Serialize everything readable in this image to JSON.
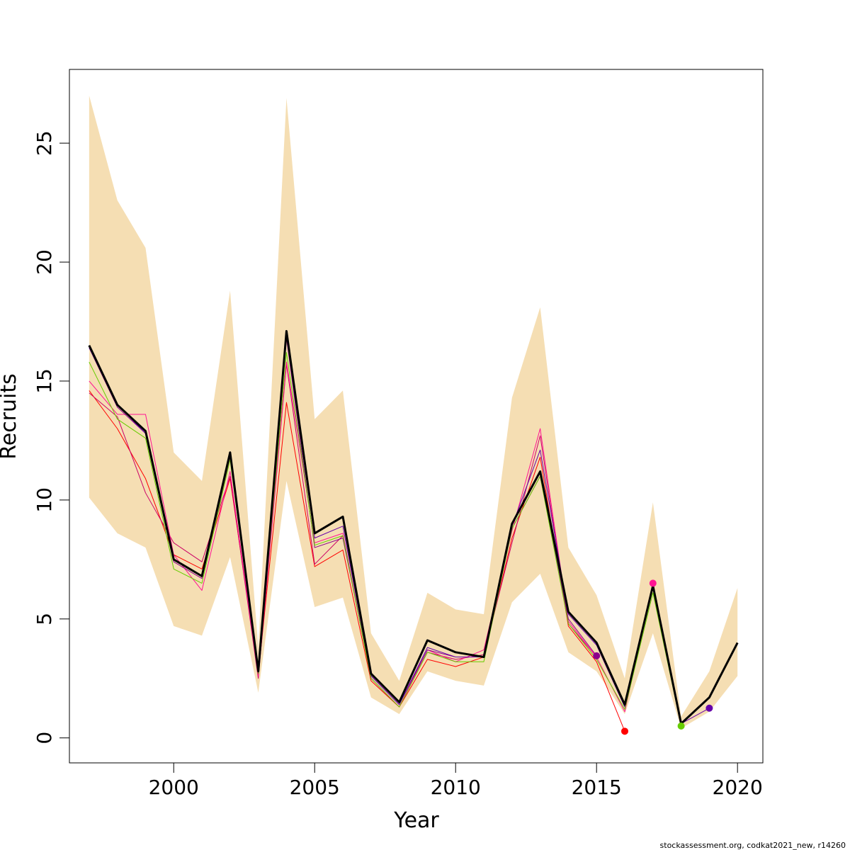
{
  "footer": {
    "credit": "stockassessment.org, codkat2021_new, r14260"
  },
  "chart_data": {
    "type": "line",
    "title": "",
    "xlabel": "Year",
    "ylabel": "Recruits",
    "xlim": [
      1996.3,
      2020.9
    ],
    "ylim": [
      -1.05,
      28.1
    ],
    "x_ticks": [
      2000,
      2005,
      2010,
      2015,
      2020
    ],
    "y_ticks": [
      0,
      5,
      10,
      15,
      20,
      25
    ],
    "grid": false,
    "legend": "none",
    "colors": {
      "band": "#f5deb3",
      "estimate": "#000000",
      "retro_red": "#ff0000",
      "retro_magenta": "#cc0066",
      "retro_pink": "#ff1493",
      "retro_purple": "#8b008b",
      "retro_indigo": "#6600aa",
      "retro_green": "#66cc00"
    },
    "band": {
      "x": [
        1997,
        1998,
        1999,
        2000,
        2001,
        2002,
        2003,
        2004,
        2005,
        2006,
        2007,
        2008,
        2009,
        2010,
        2011,
        2012,
        2013,
        2014,
        2015,
        2016,
        2017,
        2018,
        2019,
        2020
      ],
      "upper": [
        27.0,
        22.6,
        20.6,
        12.0,
        10.8,
        18.8,
        3.8,
        26.9,
        13.4,
        14.6,
        4.4,
        2.4,
        6.1,
        5.4,
        5.2,
        14.3,
        18.1,
        8.0,
        6.0,
        2.5,
        9.9,
        0.9,
        2.8,
        6.3
      ],
      "lower": [
        10.1,
        8.6,
        8.0,
        4.7,
        4.3,
        7.6,
        1.9,
        10.8,
        5.5,
        5.9,
        1.7,
        1.0,
        2.8,
        2.4,
        2.2,
        5.7,
        6.9,
        3.6,
        2.8,
        1.0,
        4.4,
        0.4,
        1.1,
        2.6
      ]
    },
    "series": [
      {
        "color": "#000000",
        "width": 3,
        "x": [
          1997,
          1998,
          1999,
          2000,
          2001,
          2002,
          2003,
          2004,
          2005,
          2006,
          2007,
          2008,
          2009,
          2010,
          2011,
          2012,
          2013,
          2014,
          2015,
          2016,
          2017,
          2018,
          2019,
          2020
        ],
        "values": [
          16.5,
          14.0,
          12.9,
          7.5,
          6.8,
          12.0,
          2.8,
          17.1,
          8.6,
          9.3,
          2.7,
          1.5,
          4.1,
          3.6,
          3.4,
          9.0,
          11.2,
          5.3,
          4.0,
          1.4,
          6.4,
          0.6,
          1.7,
          4.0
        ]
      },
      {
        "color": "#ff0000",
        "width": 1,
        "x": [
          1997,
          1998,
          1999,
          2000,
          2001,
          2002,
          2003,
          2004,
          2005,
          2006,
          2007,
          2008,
          2009,
          2010,
          2011,
          2012,
          2013,
          2014,
          2015,
          2016
        ],
        "values": [
          14.6,
          13.0,
          10.9,
          7.7,
          7.1,
          10.9,
          2.7,
          14.1,
          7.2,
          7.9,
          2.4,
          1.3,
          3.3,
          3.0,
          3.4,
          8.4,
          11.8,
          4.7,
          3.2,
          0.28
        ]
      },
      {
        "color": "#cc0066",
        "width": 1,
        "x": [
          1997,
          1998,
          1999,
          2000,
          2001,
          2002,
          2003,
          2004,
          2005,
          2006,
          2007,
          2008,
          2009,
          2010,
          2011,
          2012,
          2013,
          2014,
          2015
        ],
        "values": [
          14.5,
          13.5,
          10.3,
          8.2,
          7.4,
          11.0,
          2.5,
          15.7,
          7.3,
          8.5,
          2.5,
          1.3,
          3.6,
          3.3,
          3.5,
          8.2,
          12.7,
          4.8,
          3.4
        ]
      },
      {
        "color": "#ff1493",
        "width": 1,
        "x": [
          1997,
          1998,
          1999,
          2000,
          2001,
          2002,
          2003,
          2004,
          2005,
          2006,
          2007,
          2008,
          2009,
          2010,
          2011,
          2012,
          2013,
          2014,
          2015,
          2016,
          2017
        ],
        "values": [
          15.0,
          13.6,
          13.6,
          7.7,
          6.2,
          11.2,
          2.6,
          15.8,
          8.2,
          8.6,
          2.5,
          1.3,
          3.7,
          3.2,
          3.7,
          8.7,
          13.0,
          4.9,
          3.4,
          1.1,
          6.5
        ]
      },
      {
        "color": "#8b008b",
        "width": 1,
        "x": [
          1997,
          1998,
          1999,
          2000,
          2001,
          2002,
          2003,
          2004,
          2005,
          2006,
          2007,
          2008,
          2009,
          2010,
          2011,
          2012,
          2013,
          2014,
          2015
        ],
        "values": [
          16.4,
          13.9,
          12.8,
          7.4,
          6.7,
          11.8,
          2.7,
          16.8,
          8.0,
          8.4,
          2.6,
          1.4,
          3.7,
          3.4,
          3.4,
          8.8,
          11.0,
          5.0,
          3.45
        ]
      },
      {
        "color": "#6600aa",
        "width": 1,
        "x": [
          1997,
          1998,
          1999,
          2000,
          2001,
          2002,
          2003,
          2004,
          2005,
          2006,
          2007,
          2008,
          2009,
          2010,
          2011,
          2012,
          2013,
          2014,
          2015,
          2016,
          2017,
          2018,
          2019
        ],
        "values": [
          16.4,
          14.0,
          12.8,
          7.5,
          6.8,
          11.9,
          2.8,
          17.0,
          8.4,
          8.9,
          2.6,
          1.4,
          3.8,
          3.4,
          3.4,
          8.9,
          12.1,
          5.2,
          3.9,
          1.3,
          6.4,
          0.6,
          1.25
        ]
      },
      {
        "color": "#66cc00",
        "width": 1,
        "x": [
          1997,
          1998,
          1999,
          2000,
          2001,
          2002,
          2003,
          2004,
          2005,
          2006,
          2007,
          2008,
          2009,
          2010,
          2011,
          2012,
          2013,
          2014,
          2015,
          2016,
          2017,
          2018
        ],
        "values": [
          15.8,
          13.4,
          12.6,
          7.1,
          6.5,
          11.7,
          2.7,
          16.2,
          8.1,
          8.5,
          2.5,
          1.3,
          3.6,
          3.2,
          3.2,
          8.8,
          11.0,
          4.8,
          3.3,
          1.2,
          6.1,
          0.5
        ]
      }
    ],
    "end_points": [
      {
        "x": 2015,
        "y": 3.45,
        "color": "#8b008b"
      },
      {
        "x": 2016,
        "y": 0.28,
        "color": "#ff0000"
      },
      {
        "x": 2017,
        "y": 6.5,
        "color": "#ff1493"
      },
      {
        "x": 2018,
        "y": 0.5,
        "color": "#66cc00"
      },
      {
        "x": 2019,
        "y": 1.25,
        "color": "#6600aa"
      }
    ]
  }
}
